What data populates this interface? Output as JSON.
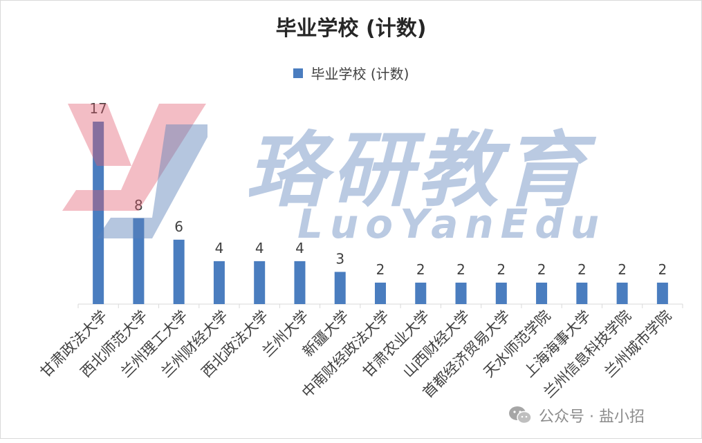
{
  "chart_data": {
    "type": "bar",
    "title": "毕业学校 (计数)",
    "legend": [
      "毕业学校 (计数)"
    ],
    "legend_position": "top",
    "categories": [
      "甘肃政法大学",
      "西北师范大学",
      "兰州理工大学",
      "兰州财经大学",
      "西北政法大学",
      "兰州大学",
      "新疆大学",
      "中南财经政法大学",
      "甘肃农业大学",
      "山西财经大学",
      "首都经济贸易大学",
      "天水师范学院",
      "上海海事大学",
      "兰州信息科技学院",
      "兰州城市学院"
    ],
    "series": [
      {
        "name": "毕业学校 (计数)",
        "values": [
          17,
          8,
          6,
          4,
          4,
          4,
          3,
          2,
          2,
          2,
          2,
          2,
          2,
          2,
          2
        ]
      }
    ],
    "ylim": [
      0,
      17
    ],
    "grid": false,
    "bar_color": "#4a7dbf"
  },
  "watermark": {
    "brand_cn": "珞研教育",
    "brand_en": "LuoYanEdu"
  },
  "footer": {
    "text": "公众号 · 盐小招",
    "icon": "wechat-icon"
  }
}
